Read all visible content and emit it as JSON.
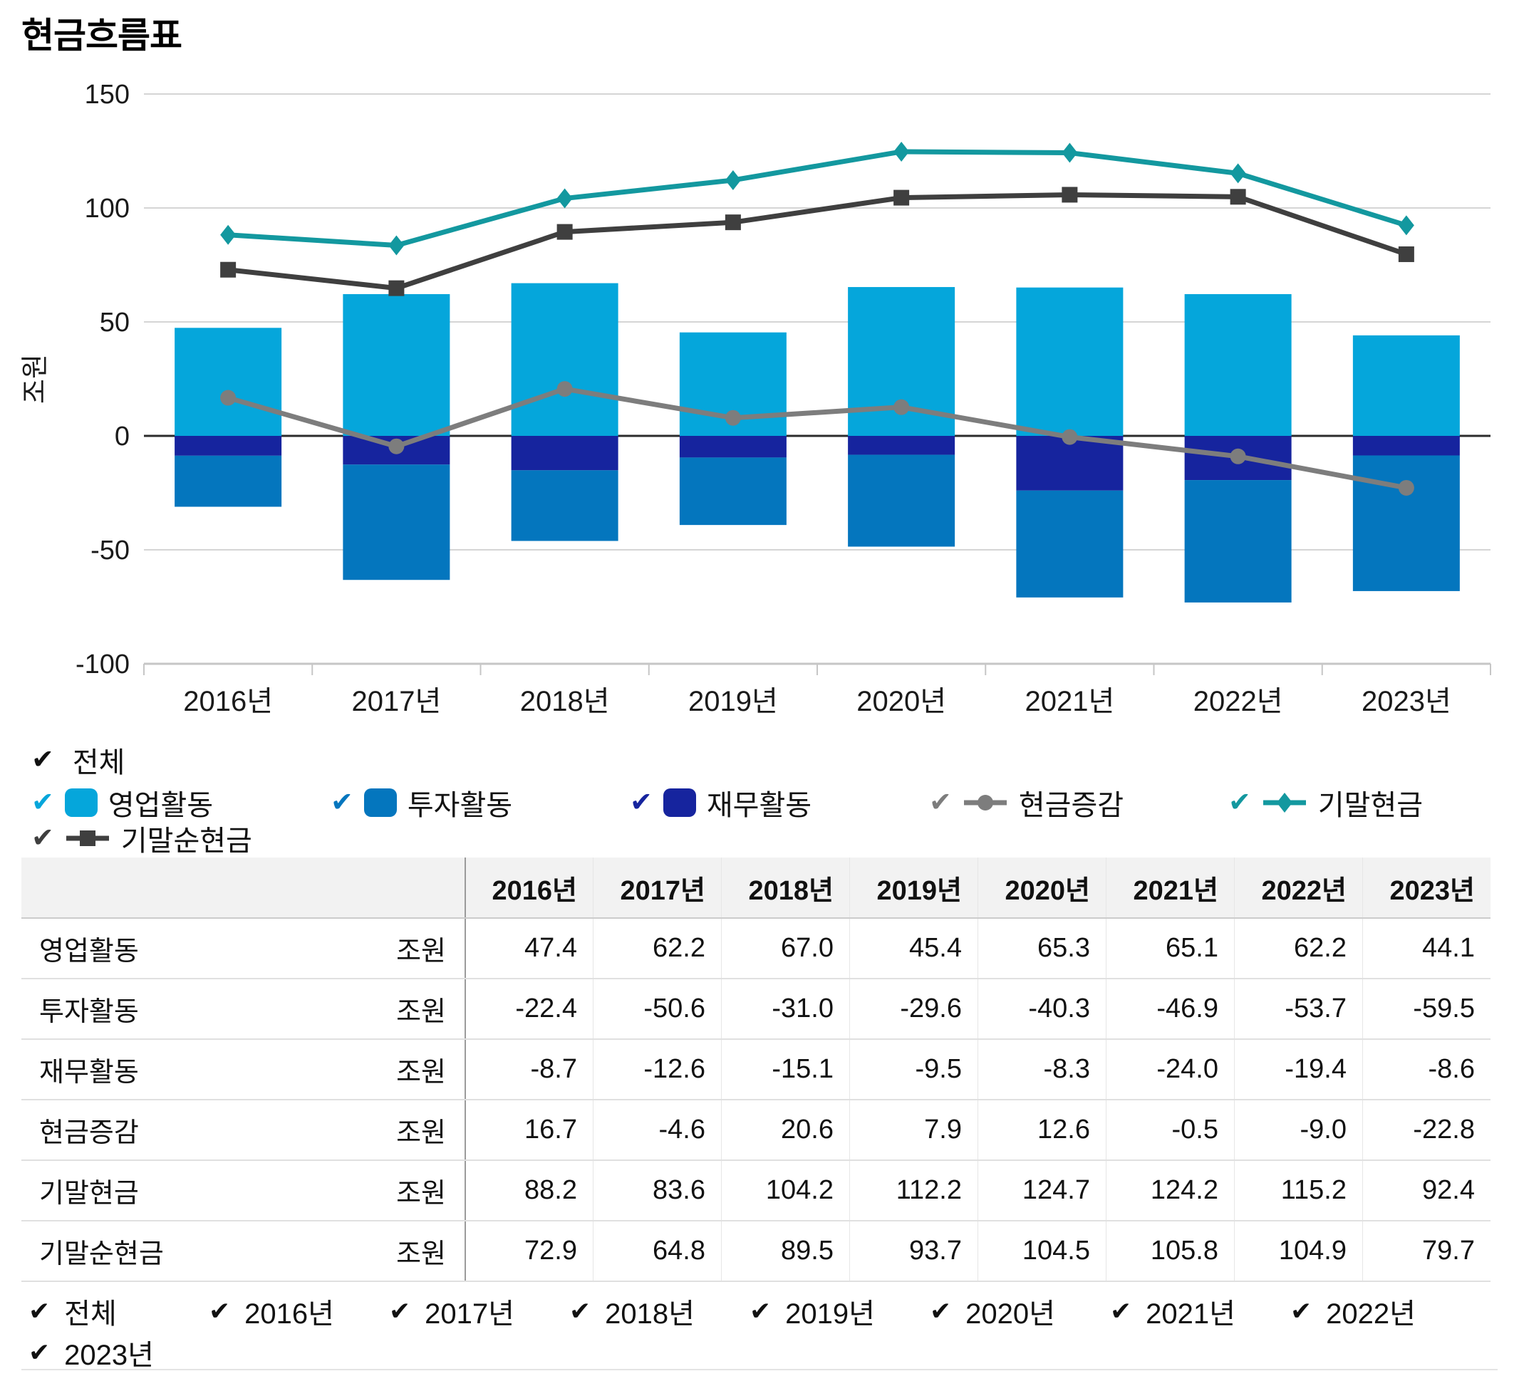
{
  "title": "현금흐름표",
  "unit": "조원",
  "colors": {
    "operating": "#05A6DB",
    "investing": "#0476BE",
    "financing": "#16249E",
    "cash_change": "#7D7D7D",
    "ending_cash": "#13989F",
    "ending_net_cash": "#3F3F3F",
    "grid": "#D5D5D5",
    "zero": "#2B2B2B",
    "axis": "#C6C6C6",
    "text": "#1A1A1A",
    "check_all": "#111111"
  },
  "chart_data": {
    "type": "combo (stacked bar + line)",
    "title": "현금흐름표",
    "ylabel": "조원",
    "categories": [
      "2016년",
      "2017년",
      "2018년",
      "2019년",
      "2020년",
      "2021년",
      "2022년",
      "2023년"
    ],
    "y_axis": {
      "min": -100,
      "max": 150,
      "step": 50,
      "ticks": [
        150,
        100,
        50,
        0,
        -50,
        -100
      ],
      "label": "조원"
    },
    "grid": true,
    "legend_position": "bottom",
    "series": [
      {
        "name": "영업활동",
        "type": "bar",
        "stack": "positive",
        "color_key": "operating",
        "values": [
          47.4,
          62.2,
          67.0,
          45.4,
          65.3,
          65.1,
          62.2,
          44.1
        ]
      },
      {
        "name": "투자활동",
        "type": "bar",
        "stack": "negative-outer",
        "color_key": "investing",
        "values": [
          -22.4,
          -50.6,
          -31.0,
          -29.6,
          -40.3,
          -46.9,
          -53.7,
          -59.5
        ]
      },
      {
        "name": "재무활동",
        "type": "bar",
        "stack": "negative-inner",
        "color_key": "financing",
        "values": [
          -8.7,
          -12.6,
          -15.1,
          -9.5,
          -8.3,
          -24.0,
          -19.4,
          -8.6
        ]
      },
      {
        "name": "현금증감",
        "type": "line",
        "marker": "circle",
        "color_key": "cash_change",
        "values": [
          16.7,
          -4.6,
          20.6,
          7.9,
          12.6,
          -0.5,
          -9.0,
          -22.8
        ]
      },
      {
        "name": "기말현금",
        "type": "line",
        "marker": "diamond",
        "color_key": "ending_cash",
        "values": [
          88.2,
          83.6,
          104.2,
          112.2,
          124.7,
          124.2,
          115.2,
          92.4
        ]
      },
      {
        "name": "기말순현금",
        "type": "line",
        "marker": "square",
        "color_key": "ending_net_cash",
        "values": [
          72.9,
          64.8,
          89.5,
          93.7,
          104.5,
          105.8,
          104.9,
          79.7
        ]
      }
    ]
  },
  "legend": {
    "all_label": "전체",
    "row1": [
      {
        "label": "영업활동",
        "kind": "bar",
        "color_key": "operating"
      },
      {
        "label": "투자활동",
        "kind": "bar",
        "color_key": "investing"
      },
      {
        "label": "재무활동",
        "kind": "bar",
        "color_key": "financing"
      },
      {
        "label": "현금증감",
        "kind": "line",
        "marker": "circle",
        "color_key": "cash_change"
      },
      {
        "label": "기말현금",
        "kind": "line",
        "marker": "diamond",
        "color_key": "ending_cash"
      }
    ],
    "row2": [
      {
        "label": "기말순현금",
        "kind": "line",
        "marker": "square",
        "color_key": "ending_net_cash"
      }
    ]
  },
  "table": {
    "unit_label": "조원",
    "columns": [
      "2016년",
      "2017년",
      "2018년",
      "2019년",
      "2020년",
      "2021년",
      "2022년",
      "2023년"
    ],
    "rows": [
      {
        "label": "영업활동",
        "values": [
          "47.4",
          "62.2",
          "67.0",
          "45.4",
          "65.3",
          "65.1",
          "62.2",
          "44.1"
        ]
      },
      {
        "label": "투자활동",
        "values": [
          "-22.4",
          "-50.6",
          "-31.0",
          "-29.6",
          "-40.3",
          "-46.9",
          "-53.7",
          "-59.5"
        ]
      },
      {
        "label": "재무활동",
        "values": [
          "-8.7",
          "-12.6",
          "-15.1",
          "-9.5",
          "-8.3",
          "-24.0",
          "-19.4",
          "-8.6"
        ]
      },
      {
        "label": "현금증감",
        "values": [
          "16.7",
          "-4.6",
          "20.6",
          "7.9",
          "12.6",
          "-0.5",
          "-9.0",
          "-22.8"
        ]
      },
      {
        "label": "기말현금",
        "values": [
          "88.2",
          "83.6",
          "104.2",
          "112.2",
          "124.7",
          "124.2",
          "115.2",
          "92.4"
        ]
      },
      {
        "label": "기말순현금",
        "values": [
          "72.9",
          "64.8",
          "89.5",
          "93.7",
          "104.5",
          "105.8",
          "104.9",
          "79.7"
        ]
      }
    ]
  },
  "filters": [
    "전체",
    "2016년",
    "2017년",
    "2018년",
    "2019년",
    "2020년",
    "2021년",
    "2022년",
    "2023년"
  ]
}
